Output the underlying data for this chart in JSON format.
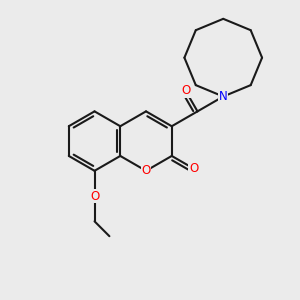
{
  "bg_color": "#ebebeb",
  "bond_color": "#1a1a1a",
  "bond_width": 1.5,
  "N_color": "#0000ff",
  "O_color": "#ff0000",
  "font_size": 8.5,
  "fig_size": [
    3.0,
    3.0
  ],
  "dpi": 100,
  "xlim": [
    0,
    10
  ],
  "ylim": [
    0,
    10
  ]
}
